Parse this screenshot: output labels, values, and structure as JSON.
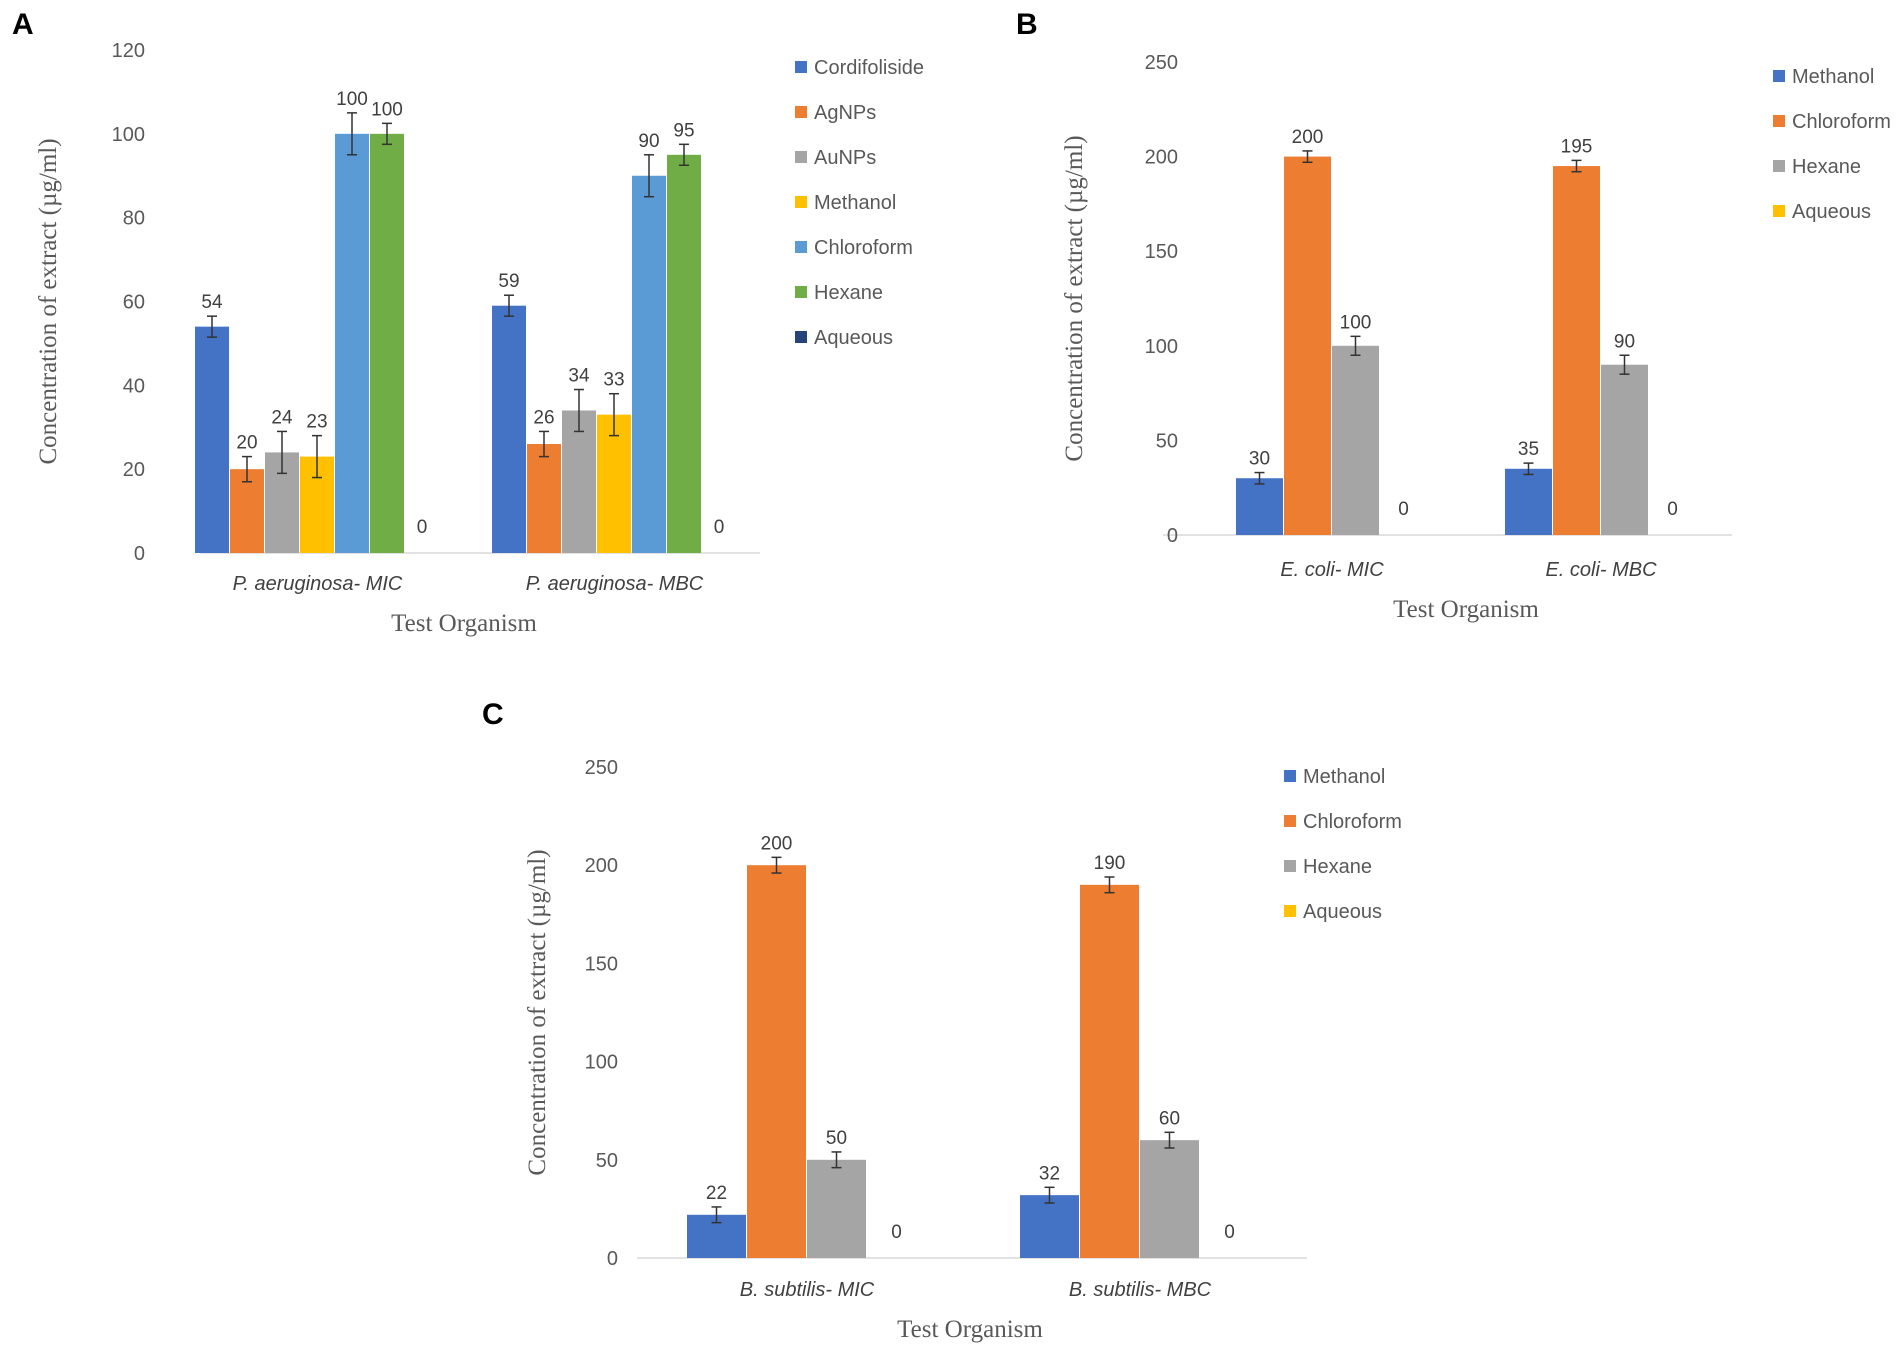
{
  "chart_data": [
    {
      "panel": "A",
      "type": "bar",
      "title": "",
      "xlabel": "Test Organism",
      "ylabel": "Concentration of extract (µg/ml)",
      "ylim": [
        0,
        120
      ],
      "yticks": [
        0,
        20,
        40,
        60,
        80,
        100,
        120
      ],
      "categories": [
        "P. aeruginosa- MIC",
        "P. aeruginosa- MBC"
      ],
      "series": [
        {
          "name": "Cordifoliside",
          "color": "#4472c4",
          "values": [
            54,
            59
          ],
          "errors": [
            2.5,
            2.5
          ]
        },
        {
          "name": "AgNPs",
          "color": "#ed7d31",
          "values": [
            20,
            26
          ],
          "errors": [
            3,
            3
          ]
        },
        {
          "name": "AuNPs",
          "color": "#a5a5a5",
          "values": [
            24,
            34
          ],
          "errors": [
            5,
            5
          ]
        },
        {
          "name": "Methanol",
          "color": "#ffc000",
          "values": [
            23,
            33
          ],
          "errors": [
            5,
            5
          ]
        },
        {
          "name": "Chloroform",
          "color": "#5b9bd5",
          "values": [
            100,
            90
          ],
          "errors": [
            5,
            5
          ]
        },
        {
          "name": "Hexane",
          "color": "#70ad47",
          "values": [
            100,
            95
          ],
          "errors": [
            2.5,
            2.5
          ]
        },
        {
          "name": "Aqueous",
          "color": "#264478",
          "values": [
            0,
            0
          ],
          "errors": [
            0,
            0
          ]
        }
      ],
      "legend_position": "right"
    },
    {
      "panel": "B",
      "type": "bar",
      "title": "",
      "xlabel": "Test Organism",
      "ylabel": "Concentration of extract (µg/ml)",
      "ylim": [
        0,
        250
      ],
      "yticks": [
        0,
        50,
        100,
        150,
        200,
        250
      ],
      "categories": [
        "E. coli- MIC",
        "E. coli- MBC"
      ],
      "series": [
        {
          "name": "Methanol",
          "color": "#4472c4",
          "values": [
            30,
            35
          ],
          "errors": [
            3,
            3
          ]
        },
        {
          "name": "Chloroform",
          "color": "#ed7d31",
          "values": [
            200,
            195
          ],
          "errors": [
            3,
            3
          ]
        },
        {
          "name": "Hexane",
          "color": "#a5a5a5",
          "values": [
            100,
            90
          ],
          "errors": [
            5,
            5
          ]
        },
        {
          "name": "Aqueous",
          "color": "#ffc000",
          "values": [
            0,
            0
          ],
          "errors": [
            0,
            0
          ]
        }
      ],
      "legend_position": "right"
    },
    {
      "panel": "C",
      "type": "bar",
      "title": "",
      "xlabel": "Test Organism",
      "ylabel": "Concentration of extract (µg/ml)",
      "ylim": [
        0,
        250
      ],
      "yticks": [
        0,
        50,
        100,
        150,
        200,
        250
      ],
      "categories": [
        "B. subtilis- MIC",
        "B. subtilis- MBC"
      ],
      "series": [
        {
          "name": "Methanol",
          "color": "#4472c4",
          "values": [
            22,
            32
          ],
          "errors": [
            4,
            4
          ]
        },
        {
          "name": "Chloroform",
          "color": "#ed7d31",
          "values": [
            200,
            190
          ],
          "errors": [
            4,
            4
          ]
        },
        {
          "name": "Hexane",
          "color": "#a5a5a5",
          "values": [
            50,
            60
          ],
          "errors": [
            4,
            4
          ]
        },
        {
          "name": "Aqueous",
          "color": "#ffc000",
          "values": [
            0,
            0
          ],
          "errors": [
            0,
            0
          ]
        }
      ],
      "legend_position": "right"
    }
  ]
}
